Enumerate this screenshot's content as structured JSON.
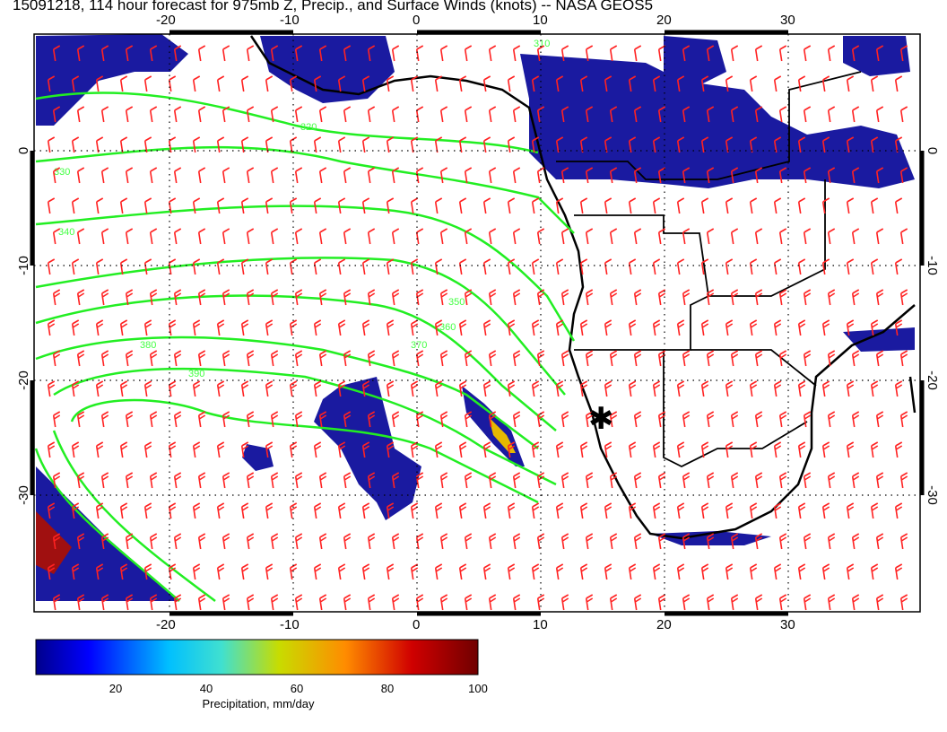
{
  "title": "15091218, 114 hour forecast for 975mb Z, Precip., and Surface Winds (knots) -- NASA GEOS5",
  "map": {
    "lon_ticks": [
      "-20",
      "-10",
      "0",
      "10",
      "20",
      "30"
    ],
    "lat_ticks": [
      "0",
      "-10",
      "-20",
      "-30"
    ],
    "contour_labels": [
      "310",
      "320",
      "330",
      "340",
      "350",
      "360",
      "370",
      "380",
      "390"
    ],
    "marker": "✱",
    "colors": {
      "contour": "#22ee22",
      "wind_barb": "#ff2222",
      "coastline": "#000000",
      "precip_low": "#1a1aa0",
      "precip_mid": "#e6e600",
      "precip_high": "#8b0000"
    },
    "icons": {
      "wind": "wind-barb-icon",
      "site": "asterisk-marker-icon"
    }
  },
  "colorbar": {
    "ticks": [
      "20",
      "40",
      "60",
      "80",
      "100"
    ],
    "label": "Precipitation, mm/day",
    "range": [
      0,
      100
    ]
  }
}
